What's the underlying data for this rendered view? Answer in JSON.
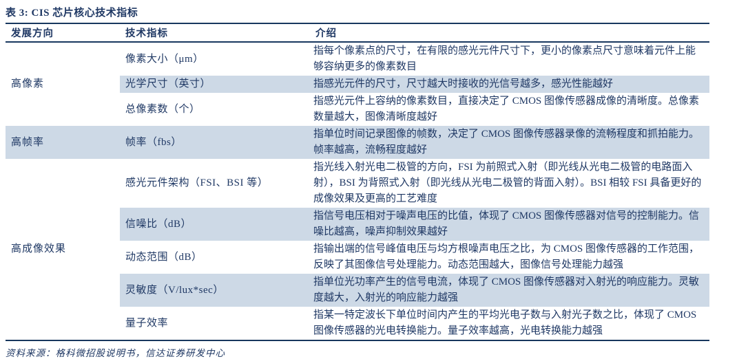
{
  "title": "表 3: CIS 芯片核心技术指标",
  "colors": {
    "text": "#1f3864",
    "rule": "#17375e",
    "row_shade": "#cdd9e6"
  },
  "table": {
    "headers": [
      "发展方向",
      "技术指标",
      "介绍"
    ],
    "groups": [
      {
        "direction": "高像素",
        "group_shaded": false,
        "rows": [
          {
            "indicator": "像素大小（μm）",
            "description": "指每个像素点的尺寸，在有限的感光元件尺寸下，更小的像素点尺寸意味着元件上能够容纳更多的像素数目",
            "shaded": false,
            "lines": 2
          },
          {
            "indicator": "光学尺寸（英寸）",
            "description": "指感光元件的尺寸，尺寸越大时接收的光信号越多，感光性能越好",
            "shaded": true,
            "lines": 1
          },
          {
            "indicator": "总像素数（个）",
            "description": "指感光元件上容纳的像素数目，直接决定了 CMOS 图像传感器成像的清晰度。总像素数量越大，图像清晰度越好",
            "shaded": false,
            "lines": 2
          }
        ]
      },
      {
        "direction": "高帧率",
        "group_shaded": true,
        "rows": [
          {
            "indicator": "帧率（fbs）",
            "description": "指单位时间记录图像的帧数，决定了 CMOS 图像传感器录像的流畅程度和抓拍能力。帧率越高，流畅程度越好",
            "shaded": true,
            "lines": 2
          }
        ]
      },
      {
        "direction": "高成像效果",
        "group_shaded": false,
        "rows": [
          {
            "indicator": "感光元件架构（FSI、BSI 等）",
            "description": "指光线入射光电二极管的方向，FSI 为前照式入射（即光线从光电二极管的电路面入射），BSI 为背照式入射（即光线从光电二极管的背面入射）。BSI 相较 FSI 具备更好的成像效果及更高的工艺难度",
            "shaded": false,
            "lines": 3
          },
          {
            "indicator": "信噪比（dB）",
            "description": "指信号电压相对于噪声电压的比值，体现了 CMOS 图像传感器对信号的控制能力。信噪比越高，噪声抑制效果越好",
            "shaded": true,
            "lines": 2
          },
          {
            "indicator": "动态范围（dB）",
            "description": "指输出端的信号峰值电压与均方根噪声电压之比，为 CMOS 图像传感器的工作范围，反映了其图像信号处理能力。动态范围越大，图像信号处理能力越强",
            "shaded": false,
            "lines": 2
          },
          {
            "indicator": "灵敏度（V/lux*sec）",
            "description": "指单位光功率产生的信号电流，体现了 CMOS 图像传感器对入射光的响应能力。灵敏度越大，入射光的响应能力越强",
            "shaded": true,
            "lines": 2
          },
          {
            "indicator": "量子效率",
            "description": "指某一特定波长下单位时间内产生的平均光电子数与入射光子数之比，体现了 CMOS 图像传感器的光电转换能力。量子效率越高，光电转换能力越强",
            "shaded": false,
            "lines": 2
          }
        ]
      }
    ]
  },
  "footer": {
    "source": "资料来源：格科微招股说明书，信达证券研发中心"
  }
}
